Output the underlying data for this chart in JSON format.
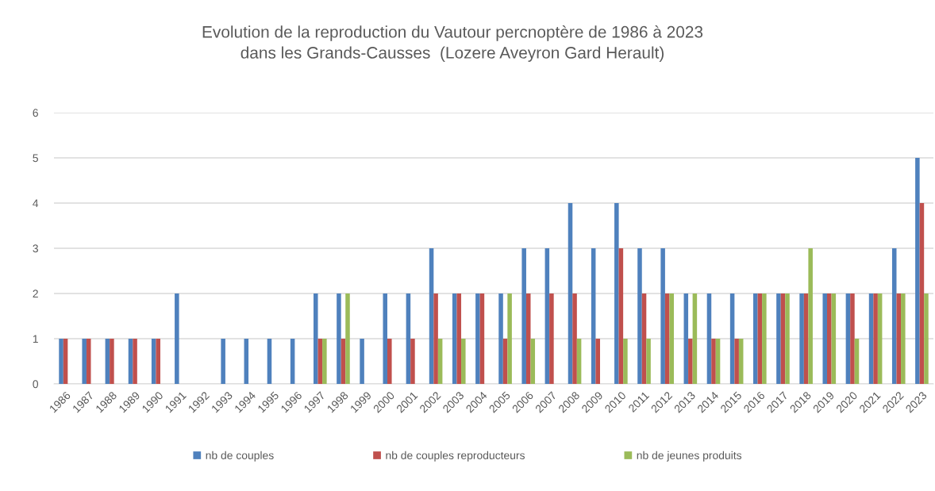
{
  "chart_data": {
    "type": "bar",
    "title": "Evolution de la reproduction du Vautour percnoptère de 1986 à 2023\ndans les Grands-Causses  (Lozere Aveyron Gard Herault)",
    "categories": [
      "1986",
      "1987",
      "1988",
      "1989",
      "1990",
      "1991",
      "1992",
      "1993",
      "1994",
      "1995",
      "1996",
      "1997",
      "1998",
      "1999",
      "2000",
      "2001",
      "2002",
      "2003",
      "2004",
      "2005",
      "2006",
      "2007",
      "2008",
      "2009",
      "2010",
      "2011",
      "2012",
      "2013",
      "2014",
      "2015",
      "2016",
      "2017",
      "2018",
      "2019",
      "2020",
      "2021",
      "2022",
      "2023"
    ],
    "series": [
      {
        "name": "nb de couples",
        "color": "#4f81bd",
        "values": [
          1,
          1,
          1,
          1,
          1,
          2,
          null,
          1,
          1,
          1,
          1,
          2,
          2,
          1,
          2,
          2,
          3,
          2,
          2,
          2,
          3,
          3,
          4,
          3,
          4,
          3,
          3,
          2,
          2,
          2,
          2,
          2,
          2,
          2,
          2,
          2,
          3,
          5
        ]
      },
      {
        "name": "nb de couples reproducteurs",
        "color": "#c0504d",
        "values": [
          1,
          1,
          1,
          1,
          1,
          null,
          null,
          null,
          null,
          null,
          null,
          1,
          1,
          null,
          1,
          1,
          2,
          2,
          2,
          1,
          2,
          2,
          2,
          1,
          3,
          2,
          2,
          1,
          1,
          1,
          2,
          2,
          2,
          2,
          2,
          2,
          2,
          4
        ]
      },
      {
        "name": "nb de jeunes produits",
        "color": "#9bbb59",
        "values": [
          null,
          null,
          null,
          null,
          null,
          null,
          null,
          null,
          null,
          null,
          null,
          1,
          2,
          null,
          null,
          null,
          1,
          1,
          null,
          2,
          1,
          null,
          1,
          null,
          1,
          1,
          2,
          2,
          1,
          1,
          2,
          2,
          3,
          2,
          1,
          2,
          2,
          2
        ]
      }
    ],
    "ylim": [
      0,
      6
    ],
    "yticks": [
      0,
      1,
      2,
      3,
      4,
      5,
      6
    ],
    "grid": "y",
    "legend": "bottom"
  }
}
